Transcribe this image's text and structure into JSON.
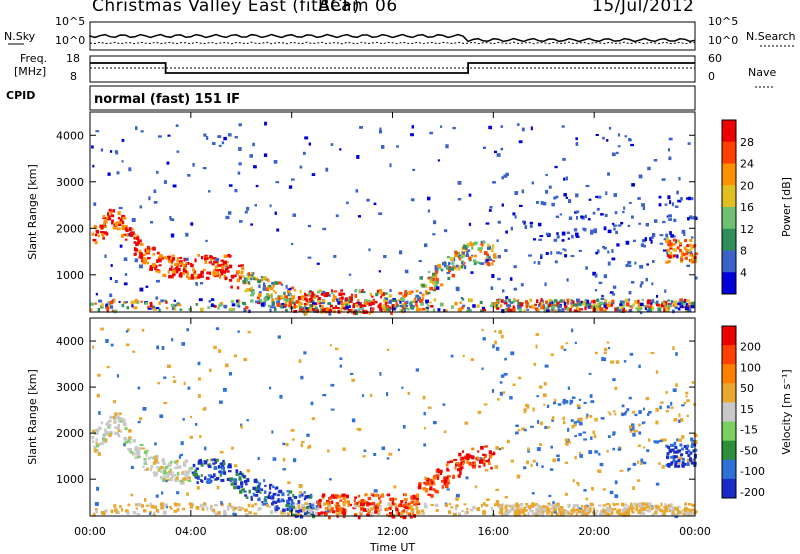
{
  "header": {
    "title": "Christmas Valley East (fitACF)",
    "beam": "Beam 06",
    "date": "15/Jul/2012"
  },
  "strip": {
    "nsky_label": "N.Sky",
    "nsearch_label": "N.Search",
    "freq_label_1": "Freq.",
    "freq_label_2": "[MHz]",
    "nave_label": "Nave",
    "cpid_label": "CPID",
    "cpid_text": "normal (fast) 151 IF",
    "noise_ticks": [
      "10^5",
      "10^0"
    ],
    "freq_ticks": [
      "18",
      "8"
    ],
    "nave_ticks": [
      "60",
      "0"
    ]
  },
  "chart_data": [
    {
      "type": "heatmap",
      "name": "power",
      "ylabel": "Slant Range [km]",
      "xlabel": "",
      "x_ticks": [
        "00:00",
        "04:00",
        "08:00",
        "12:00",
        "16:00",
        "20:00",
        "00:00"
      ],
      "y_ticks": [
        "1000",
        "2000",
        "3000",
        "4000"
      ],
      "ylim": [
        200,
        4500
      ],
      "xlim_hours": [
        0,
        24
      ],
      "colorbar_label": "Power [dB]",
      "colorbar_ticks": [
        "28",
        "24",
        "20",
        "16",
        "12",
        "8",
        "4"
      ],
      "colorscale": [
        "#0000d8",
        "#3a62c8",
        "#2f8f5a",
        "#6fc070",
        "#e0c020",
        "#ff9000",
        "#ff4000",
        "#ee0000"
      ]
    },
    {
      "type": "heatmap",
      "name": "velocity",
      "ylabel": "Slant Range [km]",
      "xlabel": "Time UT",
      "x_ticks": [
        "00:00",
        "04:00",
        "08:00",
        "12:00",
        "16:00",
        "20:00",
        "00:00"
      ],
      "y_ticks": [
        "1000",
        "2000",
        "3000",
        "4000"
      ],
      "ylim": [
        200,
        4500
      ],
      "xlim_hours": [
        0,
        24
      ],
      "colorbar_label": "Velocity [m s⁻¹]",
      "colorbar_ticks": [
        "200",
        "100",
        "50",
        "15",
        "-15",
        "-50",
        "-100",
        "-200"
      ],
      "colorscale": [
        "#1a2cc8",
        "#2f6fd8",
        "#2e8f3a",
        "#78d060",
        "#c8c8c8",
        "#e8a830",
        "#ff8000",
        "#ff4000",
        "#ee0000"
      ]
    }
  ]
}
